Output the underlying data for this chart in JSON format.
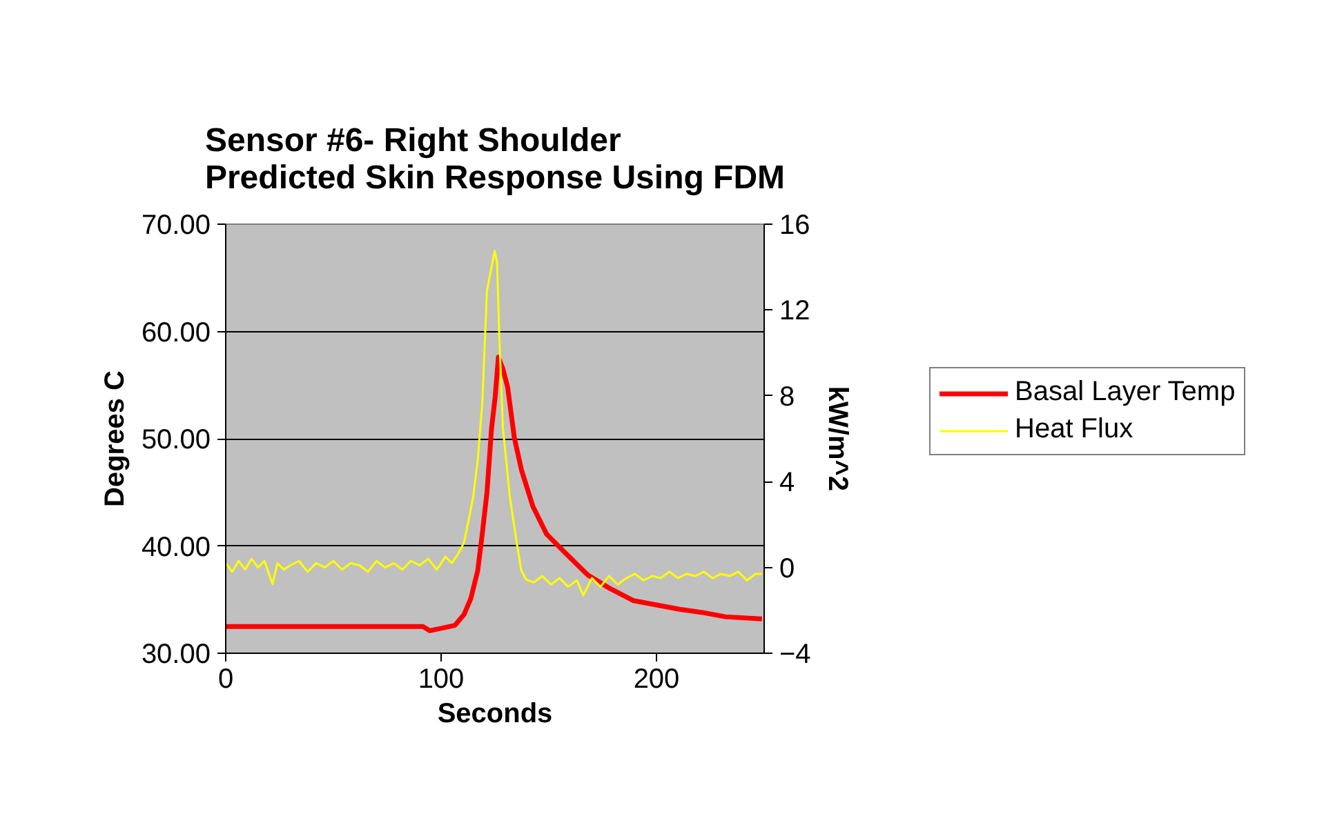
{
  "chart_data": {
    "type": "line",
    "title": "Sensor #6- Right Shoulder\nPredicted Skin Response Using FDM",
    "xlabel": "Seconds",
    "ylabel": "Degrees C",
    "y2label": "kW/m^2",
    "xlim": [
      0,
      250
    ],
    "xticks": [
      0,
      100,
      200
    ],
    "ylim": [
      30,
      70
    ],
    "yticks": [
      {
        "value": 30,
        "label": "30.00"
      },
      {
        "value": 40,
        "label": "40.00"
      },
      {
        "value": 50,
        "label": "50.00"
      },
      {
        "value": 60,
        "label": "60.00"
      },
      {
        "value": 70,
        "label": "70.00"
      }
    ],
    "y2lim": [
      -4,
      16
    ],
    "y2ticks": [
      -4,
      0,
      4,
      8,
      12,
      16
    ],
    "grid": "y",
    "legend": "right",
    "series": [
      {
        "name": "Basal Layer Temp",
        "color": "#ff0000",
        "x": [
          0,
          91.5,
          94.7,
          106.4,
          110.6,
          113.8,
          117,
          119.1,
          121.3,
          123.4,
          125.1,
          126.6,
          128.7,
          130.9,
          134,
          137.3,
          142.6,
          149,
          157.4,
          168.1,
          178.7,
          189.4,
          200,
          210.7,
          221.3,
          232,
          249
        ],
        "values": [
          32.5,
          32.5,
          32.1,
          32.6,
          33.6,
          35.1,
          37.7,
          41.1,
          45.0,
          50.9,
          53.9,
          57.6,
          56.5,
          54.8,
          50.1,
          47.1,
          43.7,
          41.1,
          39.4,
          37.3,
          36.0,
          34.9,
          34.5,
          34.1,
          33.8,
          33.4,
          33.2
        ]
      },
      {
        "name": "Heat Flux",
        "color": "#ffff00",
        "x": [
          0,
          3,
          6,
          9,
          12,
          15,
          18,
          21.7,
          24,
          27,
          30,
          34,
          38,
          42,
          46,
          50,
          54,
          58,
          62,
          66,
          70,
          74,
          78,
          82,
          86,
          90,
          94,
          98,
          102,
          105,
          108.5,
          110.6,
          112.8,
          114.9,
          117,
          119.1,
          121.3,
          123.4,
          124.9,
          126,
          127,
          128.7,
          131.9,
          135.1,
          137.2,
          139.4,
          143,
          147,
          151,
          155,
          159,
          163,
          166,
          170,
          174,
          178,
          182,
          186,
          190,
          194,
          198,
          202,
          206,
          210,
          214,
          218,
          222,
          226,
          230,
          234,
          238,
          242,
          246,
          249
        ],
        "values": [
          0.2,
          -0.2,
          0.3,
          -0.1,
          0.4,
          0,
          0.3,
          -0.77,
          0.2,
          -0.1,
          0.1,
          0.3,
          -0.2,
          0.2,
          0,
          0.3,
          -0.1,
          0.2,
          0.1,
          -0.2,
          0.3,
          0,
          0.2,
          -0.1,
          0.3,
          0.1,
          0.4,
          -0.1,
          0.5,
          0.2,
          0.73,
          1.16,
          2.2,
          3.3,
          5.0,
          7.6,
          12.9,
          14.0,
          14.75,
          14.2,
          10.8,
          6.5,
          3.3,
          1.16,
          -0.13,
          -0.56,
          -0.7,
          -0.4,
          -0.8,
          -0.5,
          -0.9,
          -0.6,
          -1.3,
          -0.5,
          -0.9,
          -0.4,
          -0.8,
          -0.5,
          -0.3,
          -0.6,
          -0.4,
          -0.5,
          -0.2,
          -0.5,
          -0.3,
          -0.4,
          -0.2,
          -0.5,
          -0.3,
          -0.4,
          -0.2,
          -0.6,
          -0.3,
          -0.3
        ],
        "axis": "y2"
      }
    ]
  }
}
